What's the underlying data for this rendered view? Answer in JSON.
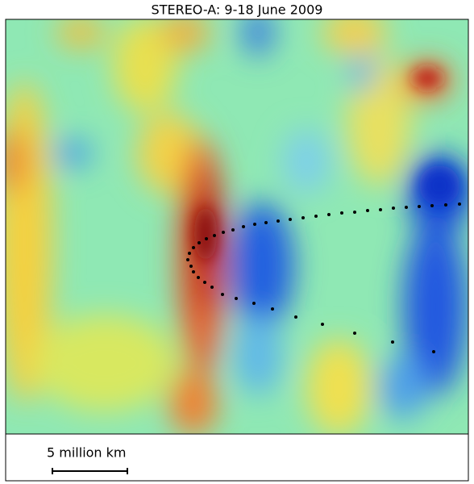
{
  "header": {
    "title": "STEREO-A: 9-18 June 2009"
  },
  "scale_bar": {
    "label": "5 million km"
  }
}
